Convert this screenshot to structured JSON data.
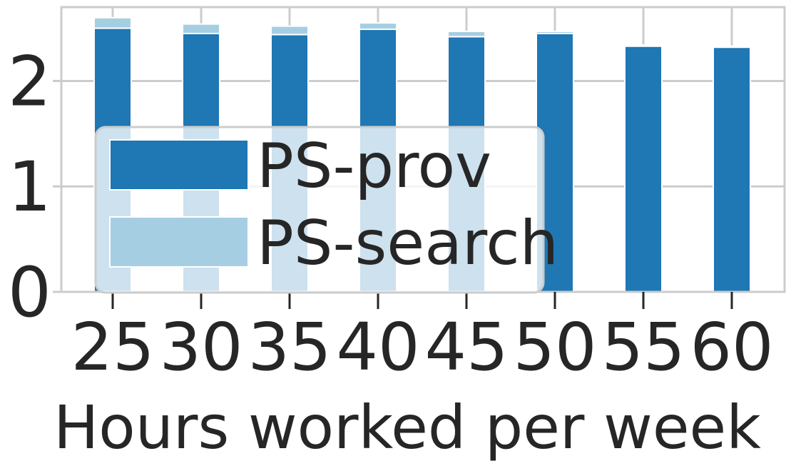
{
  "chart_data": {
    "type": "bar",
    "stacked": true,
    "categories": [
      "25",
      "30",
      "35",
      "40",
      "45",
      "50",
      "55",
      "60"
    ],
    "series": [
      {
        "name": "PS-prov",
        "color": "#1f77b4",
        "values": [
          2.5,
          2.45,
          2.44,
          2.49,
          2.42,
          2.45,
          2.33,
          2.32
        ]
      },
      {
        "name": "PS-search",
        "color": "#a6cee3",
        "values": [
          0.1,
          0.09,
          0.08,
          0.06,
          0.05,
          0.02,
          0.01,
          0.01
        ]
      }
    ],
    "xlabel": "Hours worked per week",
    "ylabel": "",
    "ylim": [
      0,
      2.7
    ],
    "yticks": [
      "0",
      "1",
      "2"
    ],
    "grid": true,
    "legend": "lower-left"
  }
}
